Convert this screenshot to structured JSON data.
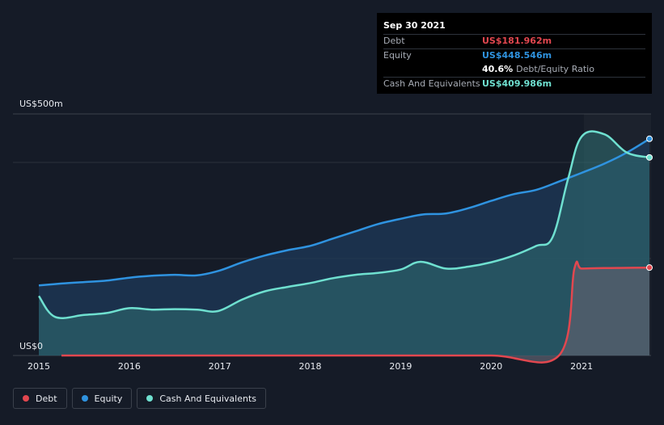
{
  "tooltip": {
    "date": "Sep 30 2021",
    "debt_label": "Debt",
    "debt_value": "US$181.962m",
    "equity_label": "Equity",
    "equity_value": "US$448.546m",
    "ratio_value": "40.6%",
    "ratio_label": "Debt/Equity Ratio",
    "cash_label": "Cash And Equivalents",
    "cash_value": "US$409.986m"
  },
  "legend": {
    "debt": "Debt",
    "equity": "Equity",
    "cash": "Cash And Equivalents"
  },
  "colors": {
    "debt": "#e2474f",
    "equity": "#2f93e0",
    "cash": "#6fe0d0",
    "background": "#151b27"
  },
  "chart_data": {
    "type": "area",
    "y_top_label": "US$500m",
    "y_bottom_label": "US$0",
    "ylim": [
      0,
      500
    ],
    "xlim": [
      2015.0,
      2021.75
    ],
    "x_ticks": [
      "2015",
      "2016",
      "2017",
      "2018",
      "2019",
      "2020",
      "2021"
    ],
    "x_tick_values": [
      2015,
      2016,
      2017,
      2018,
      2019,
      2020,
      2021
    ],
    "series": [
      {
        "name": "Equity",
        "x": [
          2015.0,
          2015.25,
          2015.5,
          2015.75,
          2016.0,
          2016.25,
          2016.5,
          2016.75,
          2017.0,
          2017.25,
          2017.5,
          2017.75,
          2018.0,
          2018.25,
          2018.5,
          2018.75,
          2019.0,
          2019.25,
          2019.5,
          2019.75,
          2020.0,
          2020.25,
          2020.5,
          2020.75,
          2021.0,
          2021.25,
          2021.5,
          2021.75
        ],
        "values": [
          145,
          149,
          152,
          155,
          161,
          165,
          167,
          166,
          176,
          193,
          207,
          218,
          227,
          242,
          257,
          272,
          283,
          292,
          294,
          305,
          320,
          334,
          343,
          360,
          378,
          397,
          420,
          448.5
        ]
      },
      {
        "name": "Cash And Equivalents",
        "x": [
          2015.0,
          2015.18,
          2015.5,
          2015.75,
          2016.0,
          2016.25,
          2016.5,
          2016.75,
          2016.98,
          2017.25,
          2017.5,
          2017.75,
          2018.0,
          2018.25,
          2018.5,
          2018.75,
          2019.0,
          2019.22,
          2019.5,
          2019.75,
          2020.0,
          2020.25,
          2020.5,
          2020.68,
          2020.85,
          2021.0,
          2021.25,
          2021.5,
          2021.75
        ],
        "values": [
          123,
          80,
          84,
          88,
          98,
          95,
          96,
          95,
          92,
          116,
          133,
          142,
          150,
          160,
          167,
          171,
          178,
          194,
          180,
          184,
          193,
          207,
          227,
          245,
          365,
          453,
          458,
          420,
          410
        ]
      },
      {
        "name": "Debt",
        "x": [
          2015.25,
          2015.5,
          2016.0,
          2017.0,
          2018.0,
          2019.0,
          2020.0,
          2020.75,
          2020.92,
          2021.0,
          2021.25,
          2021.5,
          2021.75
        ],
        "values": [
          0,
          0,
          0,
          0,
          0,
          0,
          0,
          0,
          180,
          180,
          181,
          181.5,
          182
        ]
      }
    ]
  }
}
